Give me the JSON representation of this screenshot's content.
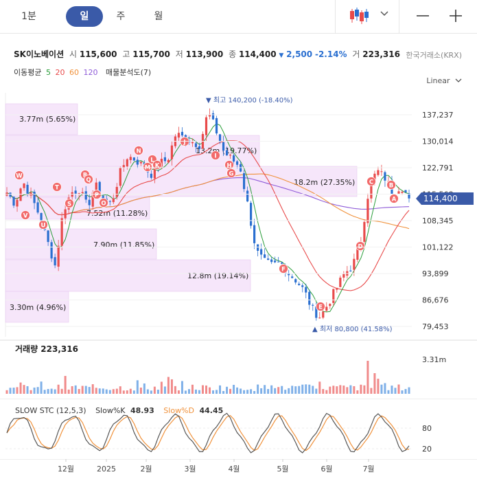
{
  "toolbar": {
    "periods": [
      {
        "label": "1분",
        "active": false
      },
      {
        "label": "일",
        "active": true
      },
      {
        "label": "주",
        "active": false
      },
      {
        "label": "월",
        "active": false
      }
    ]
  },
  "stock": {
    "name": "SK이노베이션",
    "open_label": "시",
    "open": "115,600",
    "high_label": "고",
    "high": "115,700",
    "low_label": "저",
    "low": "113,900",
    "close_label": "종",
    "close": "114,400",
    "change_arrow": "▼",
    "change": "2,500",
    "change_pct": "-2.14%",
    "volume_label": "거",
    "volume": "223,316",
    "exchange": "한국거래소(KRX)"
  },
  "indicators": {
    "ma_label": "이동평균",
    "ma": [
      {
        "period": "5",
        "color": "#2a9d3a"
      },
      {
        "period": "20",
        "color": "#e84a4a"
      },
      {
        "period": "60",
        "color": "#f0913a"
      },
      {
        "period": "120",
        "color": "#8e5ad8"
      }
    ],
    "profile_label": "매물분석도(7)"
  },
  "scale_mode": "Linear",
  "price_axis": {
    "ticks": [
      "137,237",
      "130,014",
      "122,791",
      "115,568",
      "108,345",
      "101,122",
      "93,899",
      "86,676",
      "79,453"
    ],
    "current_price": "114,400"
  },
  "annotations": {
    "high": "▼ 최고 140,200 (-18.40%)",
    "low": "▲ 최저 80,800 (41.58%)"
  },
  "volume_profile": [
    {
      "label": "3.77m (5.65%)"
    },
    {
      "label": "13.2m (19.77%)"
    },
    {
      "label": "18.2m (27.35%)"
    },
    {
      "label": "7.52m (11.28%)"
    },
    {
      "label": "7.90m (11.85%)"
    },
    {
      "label": "12.8m (19.14%)"
    },
    {
      "label": "3.30m (4.96%)"
    }
  ],
  "markers": [
    "K",
    "W",
    "V",
    "U",
    "T",
    "S",
    "R",
    "Q",
    "P",
    "O",
    "N",
    "M",
    "L",
    "K",
    "J",
    "I",
    "H",
    "G",
    "F",
    "E",
    "D",
    "C",
    "B",
    "A"
  ],
  "volume_panel": {
    "title": "거래량 223,316",
    "max_label": "3.31m"
  },
  "stochastic": {
    "title": "SLOW STC (12,5,3)",
    "k_label": "Slow%K",
    "k_value": "48.93",
    "d_label": "Slow%D",
    "d_value": "44.45",
    "ticks": [
      "80",
      "20"
    ],
    "k_color": "#555555",
    "d_color": "#f0913a"
  },
  "x_axis": [
    "12월",
    "2025",
    "2월",
    "3월",
    "4월",
    "5월",
    "6월",
    "7월"
  ],
  "colors": {
    "up": "#e84a4a",
    "down": "#2a6fd0",
    "accent": "#3a5aa8",
    "profile_fill": "#f6e6fa"
  },
  "chart_data": {
    "type": "candlestick",
    "x_ticks": [
      "12월",
      "2025",
      "2월",
      "3월",
      "4월",
      "5월",
      "6월",
      "7월"
    ],
    "y_ticks": [
      137237,
      130014,
      122791,
      115568,
      108345,
      101122,
      93899,
      86676,
      79453
    ],
    "ylim": [
      79453,
      137237
    ],
    "close_path": [
      116000,
      113000,
      119000,
      115000,
      110000,
      103000,
      96000,
      111000,
      116000,
      117000,
      112000,
      118000,
      114000,
      113000,
      121000,
      126000,
      125000,
      123000,
      121000,
      124000,
      125000,
      132000,
      131000,
      130000,
      129000,
      138000,
      133000,
      127000,
      125000,
      123000,
      112000,
      100000,
      97000,
      96000,
      97000,
      94000,
      92000,
      89000,
      84000,
      82000,
      86000,
      90000,
      94000,
      96000,
      103000,
      117000,
      122000,
      120000,
      116000,
      118000,
      114400
    ],
    "high": 140200,
    "low": 80800,
    "last_price": 114400
  }
}
